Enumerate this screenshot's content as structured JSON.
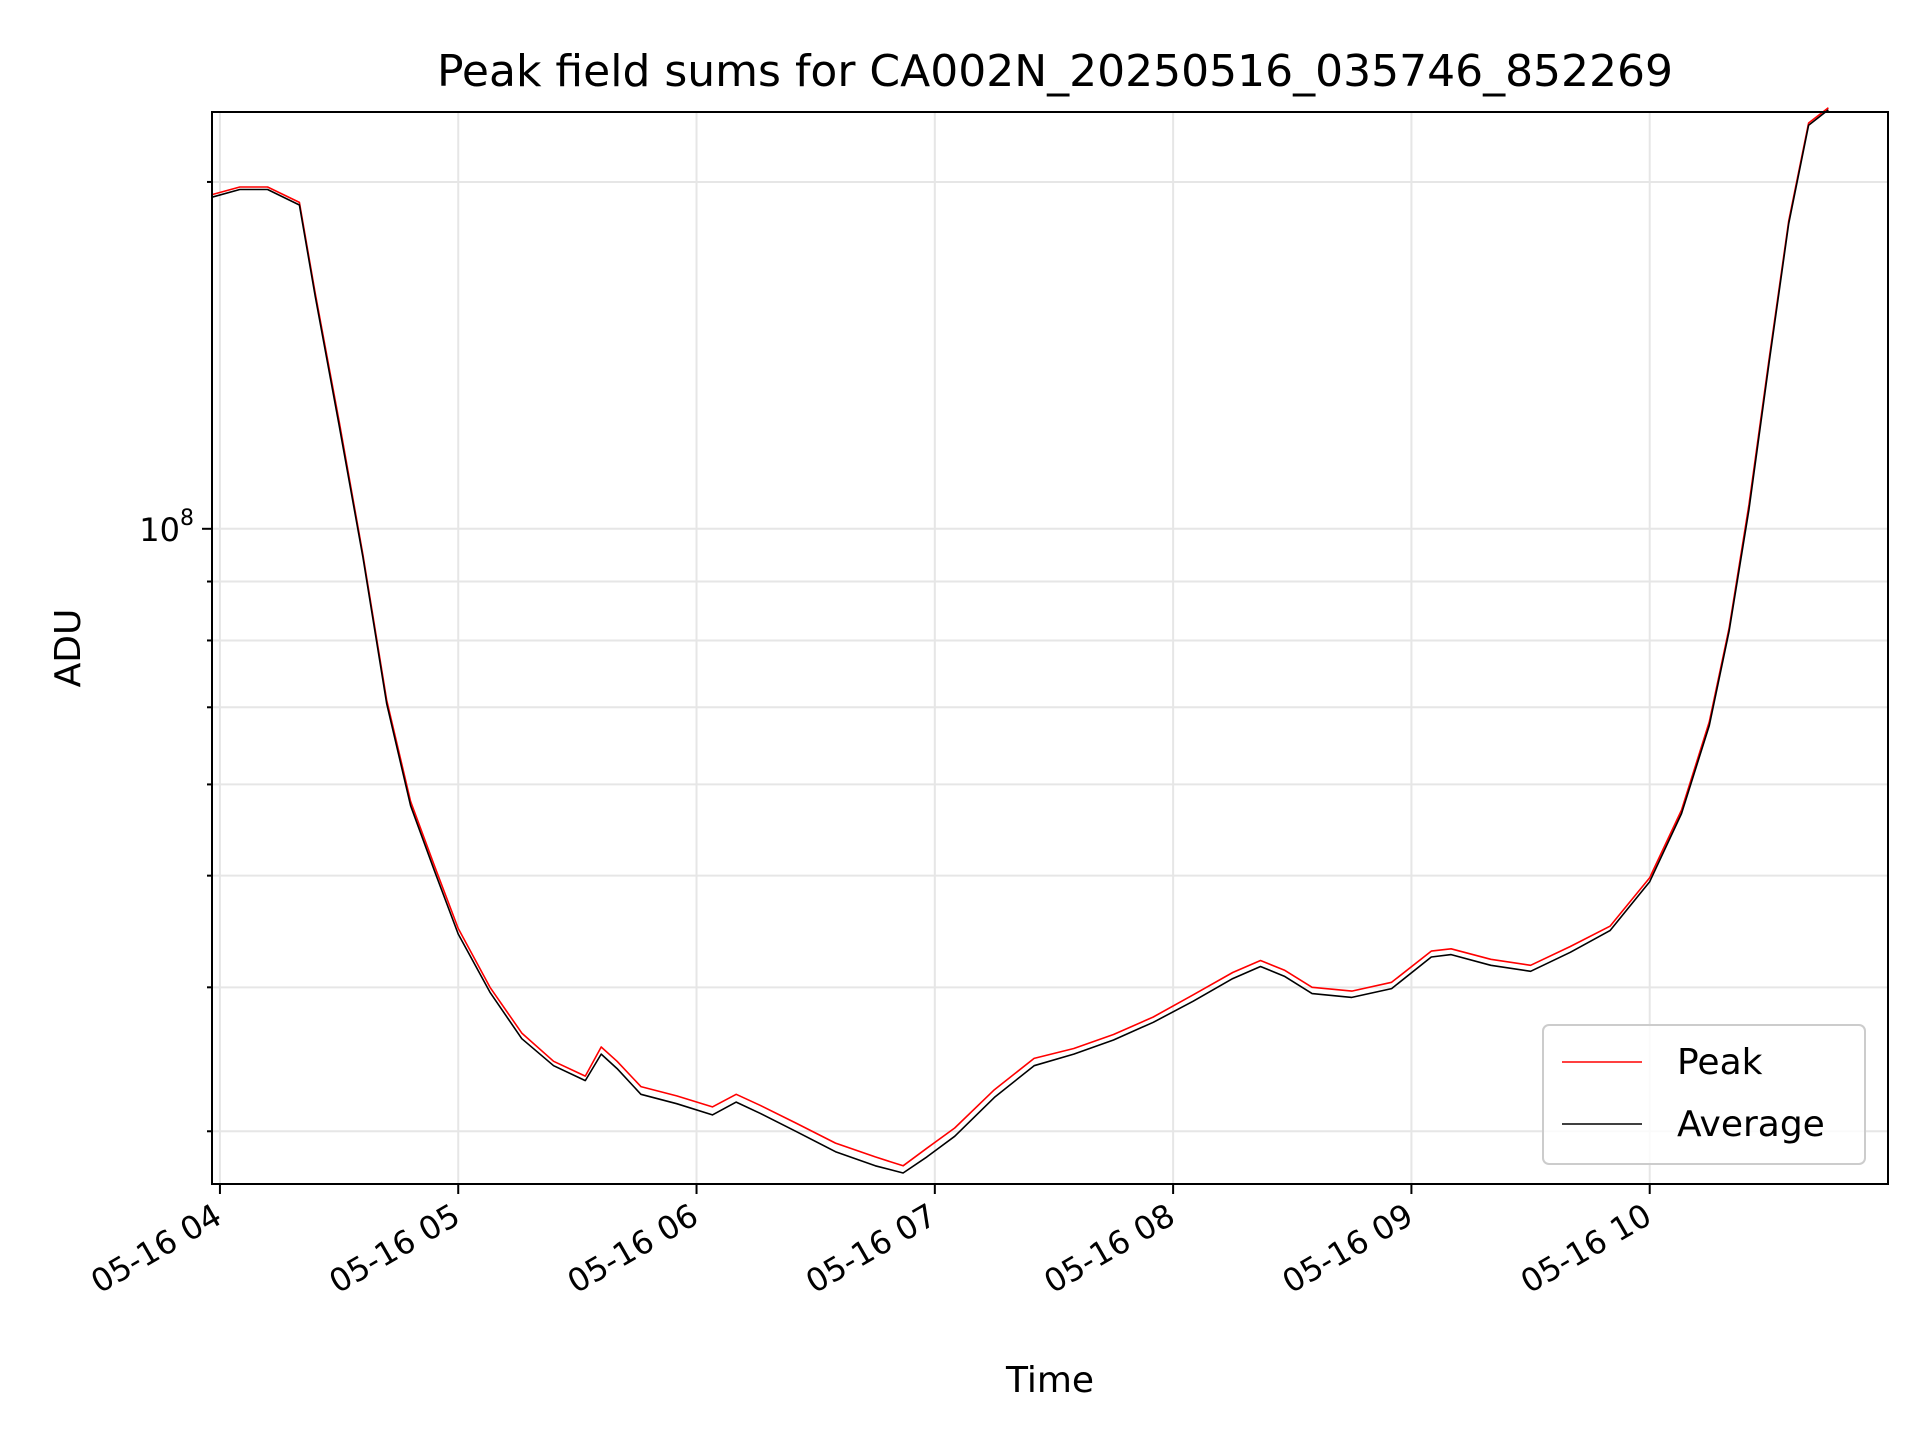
{
  "chart_data": {
    "type": "line",
    "title": "Peak field sums for CA002N_20250516_035746_852269",
    "xlabel": "Time",
    "ylabel": "ADU",
    "yscale": "log",
    "xlim": [
      "2025-05-16 03:58",
      "2025-05-16 11:00"
    ],
    "ylim": [
      27000000,
      230000000
    ],
    "x_ticks": [
      "05-16 04",
      "05-16 05",
      "05-16 06",
      "05-16 07",
      "05-16 08",
      "05-16 09",
      "05-16 10"
    ],
    "y_ticks": [
      {
        "value": 100000000,
        "base": "10",
        "exponent": "8"
      }
    ],
    "grid": true,
    "legend_position": "lower right",
    "series": [
      {
        "name": "Peak",
        "color": "#ff0000",
        "points": [
          [
            "2025-05-16 03:58",
            195000000
          ],
          [
            "2025-05-16 04:05",
            198000000
          ],
          [
            "2025-05-16 04:12",
            198000000
          ],
          [
            "2025-05-16 04:20",
            192000000
          ],
          [
            "2025-05-16 04:24",
            160000000
          ],
          [
            "2025-05-16 04:30",
            124000000
          ],
          [
            "2025-05-16 04:36",
            95000000
          ],
          [
            "2025-05-16 04:42",
            71000000
          ],
          [
            "2025-05-16 04:48",
            58000000
          ],
          [
            "2025-05-16 04:54",
            51000000
          ],
          [
            "2025-05-16 05:00",
            45000000
          ],
          [
            "2025-05-16 05:08",
            40000000
          ],
          [
            "2025-05-16 05:16",
            36500000
          ],
          [
            "2025-05-16 05:24",
            34500000
          ],
          [
            "2025-05-16 05:32",
            33500000
          ],
          [
            "2025-05-16 05:36",
            35500000
          ],
          [
            "2025-05-16 05:40",
            34500000
          ],
          [
            "2025-05-16 05:46",
            32800000
          ],
          [
            "2025-05-16 05:55",
            32200000
          ],
          [
            "2025-05-16 06:04",
            31500000
          ],
          [
            "2025-05-16 06:10",
            32300000
          ],
          [
            "2025-05-16 06:16",
            31600000
          ],
          [
            "2025-05-16 06:25",
            30500000
          ],
          [
            "2025-05-16 06:35",
            29300000
          ],
          [
            "2025-05-16 06:45",
            28500000
          ],
          [
            "2025-05-16 06:52",
            28000000
          ],
          [
            "2025-05-16 06:58",
            29000000
          ],
          [
            "2025-05-16 07:05",
            30200000
          ],
          [
            "2025-05-16 07:15",
            32600000
          ],
          [
            "2025-05-16 07:25",
            34700000
          ],
          [
            "2025-05-16 07:35",
            35400000
          ],
          [
            "2025-05-16 07:45",
            36400000
          ],
          [
            "2025-05-16 07:55",
            37700000
          ],
          [
            "2025-05-16 08:05",
            39400000
          ],
          [
            "2025-05-16 08:15",
            41200000
          ],
          [
            "2025-05-16 08:22",
            42200000
          ],
          [
            "2025-05-16 08:28",
            41400000
          ],
          [
            "2025-05-16 08:35",
            40000000
          ],
          [
            "2025-05-16 08:45",
            39700000
          ],
          [
            "2025-05-16 08:55",
            40400000
          ],
          [
            "2025-05-16 09:05",
            43000000
          ],
          [
            "2025-05-16 09:10",
            43200000
          ],
          [
            "2025-05-16 09:20",
            42300000
          ],
          [
            "2025-05-16 09:30",
            41800000
          ],
          [
            "2025-05-16 09:40",
            43400000
          ],
          [
            "2025-05-16 09:50",
            45200000
          ],
          [
            "2025-05-16 10:00",
            49800000
          ],
          [
            "2025-05-16 10:08",
            57000000
          ],
          [
            "2025-05-16 10:15",
            68000000
          ],
          [
            "2025-05-16 10:20",
            82000000
          ],
          [
            "2025-05-16 10:25",
            105000000
          ],
          [
            "2025-05-16 10:30",
            140000000
          ],
          [
            "2025-05-16 10:35",
            185000000
          ],
          [
            "2025-05-16 10:40",
            225000000
          ],
          [
            "2025-05-16 10:45",
            232000000
          ]
        ]
      },
      {
        "name": "Average",
        "color": "#000000",
        "points": [
          [
            "2025-05-16 03:58",
            194000000
          ],
          [
            "2025-05-16 04:05",
            197000000
          ],
          [
            "2025-05-16 04:12",
            197000000
          ],
          [
            "2025-05-16 04:20",
            191000000
          ],
          [
            "2025-05-16 04:24",
            159000000
          ],
          [
            "2025-05-16 04:30",
            123000000
          ],
          [
            "2025-05-16 04:36",
            94500000
          ],
          [
            "2025-05-16 04:42",
            70500000
          ],
          [
            "2025-05-16 04:48",
            57500000
          ],
          [
            "2025-05-16 04:54",
            50500000
          ],
          [
            "2025-05-16 05:00",
            44500000
          ],
          [
            "2025-05-16 05:08",
            39600000
          ],
          [
            "2025-05-16 05:16",
            36100000
          ],
          [
            "2025-05-16 05:24",
            34200000
          ],
          [
            "2025-05-16 05:32",
            33200000
          ],
          [
            "2025-05-16 05:36",
            35000000
          ],
          [
            "2025-05-16 05:40",
            34000000
          ],
          [
            "2025-05-16 05:46",
            32300000
          ],
          [
            "2025-05-16 05:55",
            31700000
          ],
          [
            "2025-05-16 06:04",
            31000000
          ],
          [
            "2025-05-16 06:10",
            31800000
          ],
          [
            "2025-05-16 06:16",
            31100000
          ],
          [
            "2025-05-16 06:25",
            30000000
          ],
          [
            "2025-05-16 06:35",
            28800000
          ],
          [
            "2025-05-16 06:45",
            28000000
          ],
          [
            "2025-05-16 06:52",
            27600000
          ],
          [
            "2025-05-16 06:58",
            28500000
          ],
          [
            "2025-05-16 07:05",
            29700000
          ],
          [
            "2025-05-16 07:15",
            32100000
          ],
          [
            "2025-05-16 07:25",
            34200000
          ],
          [
            "2025-05-16 07:35",
            35000000
          ],
          [
            "2025-05-16 07:45",
            36000000
          ],
          [
            "2025-05-16 07:55",
            37300000
          ],
          [
            "2025-05-16 08:05",
            38900000
          ],
          [
            "2025-05-16 08:15",
            40700000
          ],
          [
            "2025-05-16 08:22",
            41700000
          ],
          [
            "2025-05-16 08:28",
            40900000
          ],
          [
            "2025-05-16 08:35",
            39500000
          ],
          [
            "2025-05-16 08:45",
            39200000
          ],
          [
            "2025-05-16 08:55",
            39900000
          ],
          [
            "2025-05-16 09:05",
            42500000
          ],
          [
            "2025-05-16 09:10",
            42700000
          ],
          [
            "2025-05-16 09:20",
            41800000
          ],
          [
            "2025-05-16 09:30",
            41300000
          ],
          [
            "2025-05-16 09:40",
            42900000
          ],
          [
            "2025-05-16 09:50",
            44800000
          ],
          [
            "2025-05-16 10:00",
            49400000
          ],
          [
            "2025-05-16 10:08",
            56600000
          ],
          [
            "2025-05-16 10:15",
            67500000
          ],
          [
            "2025-05-16 10:20",
            81500000
          ],
          [
            "2025-05-16 10:25",
            104000000
          ],
          [
            "2025-05-16 10:30",
            139000000
          ],
          [
            "2025-05-16 10:35",
            184000000
          ],
          [
            "2025-05-16 10:40",
            224000000
          ],
          [
            "2025-05-16 10:45",
            231000000
          ]
        ]
      }
    ]
  }
}
